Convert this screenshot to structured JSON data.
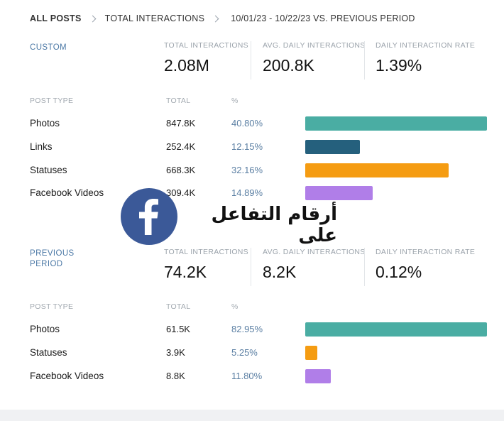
{
  "breadcrumb": {
    "root": "ALL POSTS",
    "metric": "TOTAL INTERACTIONS",
    "range": "10/01/23 - 10/22/23 VS. PREVIOUS PERIOD"
  },
  "custom": {
    "label": "CUSTOM",
    "metrics": [
      {
        "label": "TOTAL INTERACTIONS",
        "value": "2.08M"
      },
      {
        "label": "AVG. DAILY INTERACTIONS",
        "value": "200.8K"
      },
      {
        "label": "DAILY INTERACTION RATE",
        "value": "1.39%"
      }
    ],
    "columns": {
      "type": "POST TYPE",
      "total": "TOTAL",
      "pct": "%"
    },
    "rows": [
      {
        "type": "Photos",
        "total": "847.8K",
        "pct": "40.80%",
        "share": 1.0,
        "color": "#4aada3"
      },
      {
        "type": "Links",
        "total": "252.4K",
        "pct": "12.15%",
        "share": 0.3,
        "color": "#25607d"
      },
      {
        "type": "Statuses",
        "total": "668.3K",
        "pct": "32.16%",
        "share": 0.79,
        "color": "#f59c12"
      },
      {
        "type": "Facebook Videos",
        "total": "309.4K",
        "pct": "14.89%",
        "share": 0.37,
        "color": "#b07ee8"
      }
    ]
  },
  "previous": {
    "label": "PREVIOUS PERIOD",
    "metrics": [
      {
        "label": "TOTAL INTERACTIONS",
        "value": "74.2K"
      },
      {
        "label": "AVG. DAILY INTERACTIONS",
        "value": "8.2K"
      },
      {
        "label": "DAILY INTERACTION RATE",
        "value": "0.12%"
      }
    ],
    "columns": {
      "type": "POST TYPE",
      "total": "TOTAL",
      "pct": "%"
    },
    "rows": [
      {
        "type": "Photos",
        "total": "61.5K",
        "pct": "82.95%",
        "share": 1.0,
        "color": "#4aada3"
      },
      {
        "type": "Statuses",
        "total": "3.9K",
        "pct": "5.25%",
        "share": 0.065,
        "color": "#f59c12"
      },
      {
        "type": "Facebook Videos",
        "total": "8.8K",
        "pct": "11.80%",
        "share": 0.14,
        "color": "#b07ee8"
      }
    ]
  },
  "overlay": {
    "text": "أرقام التفاعل على",
    "icon": "facebook-logo-icon",
    "brand_color": "#3b5998"
  }
}
